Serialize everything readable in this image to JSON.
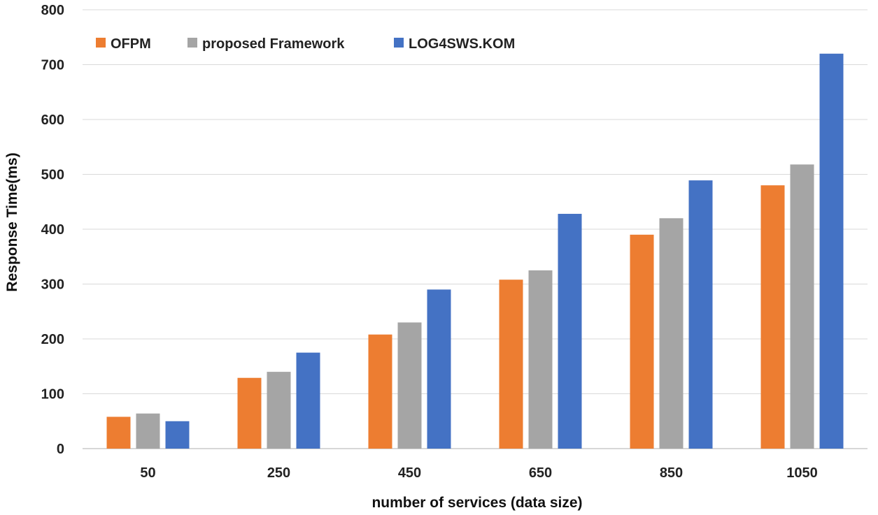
{
  "chart_data": {
    "type": "bar",
    "title": "",
    "xlabel": "number of services (data size)",
    "ylabel": "Response Time(ms)",
    "ylim": [
      0,
      800
    ],
    "yticks": [
      0,
      100,
      200,
      300,
      400,
      500,
      600,
      700,
      800
    ],
    "categories": [
      "50",
      "250",
      "450",
      "650",
      "850",
      "1050"
    ],
    "series": [
      {
        "name": "OFPM",
        "color": "#ed7d31",
        "values": [
          58,
          129,
          208,
          308,
          390,
          480
        ]
      },
      {
        "name": "proposed Framework",
        "color": "#a5a5a5",
        "values": [
          64,
          140,
          230,
          325,
          420,
          518
        ]
      },
      {
        "name": "LOG4SWS.KOM",
        "color": "#4472c4",
        "values": [
          50,
          175,
          290,
          428,
          489,
          720
        ]
      }
    ],
    "grid": true,
    "legend_position": "top-left"
  }
}
